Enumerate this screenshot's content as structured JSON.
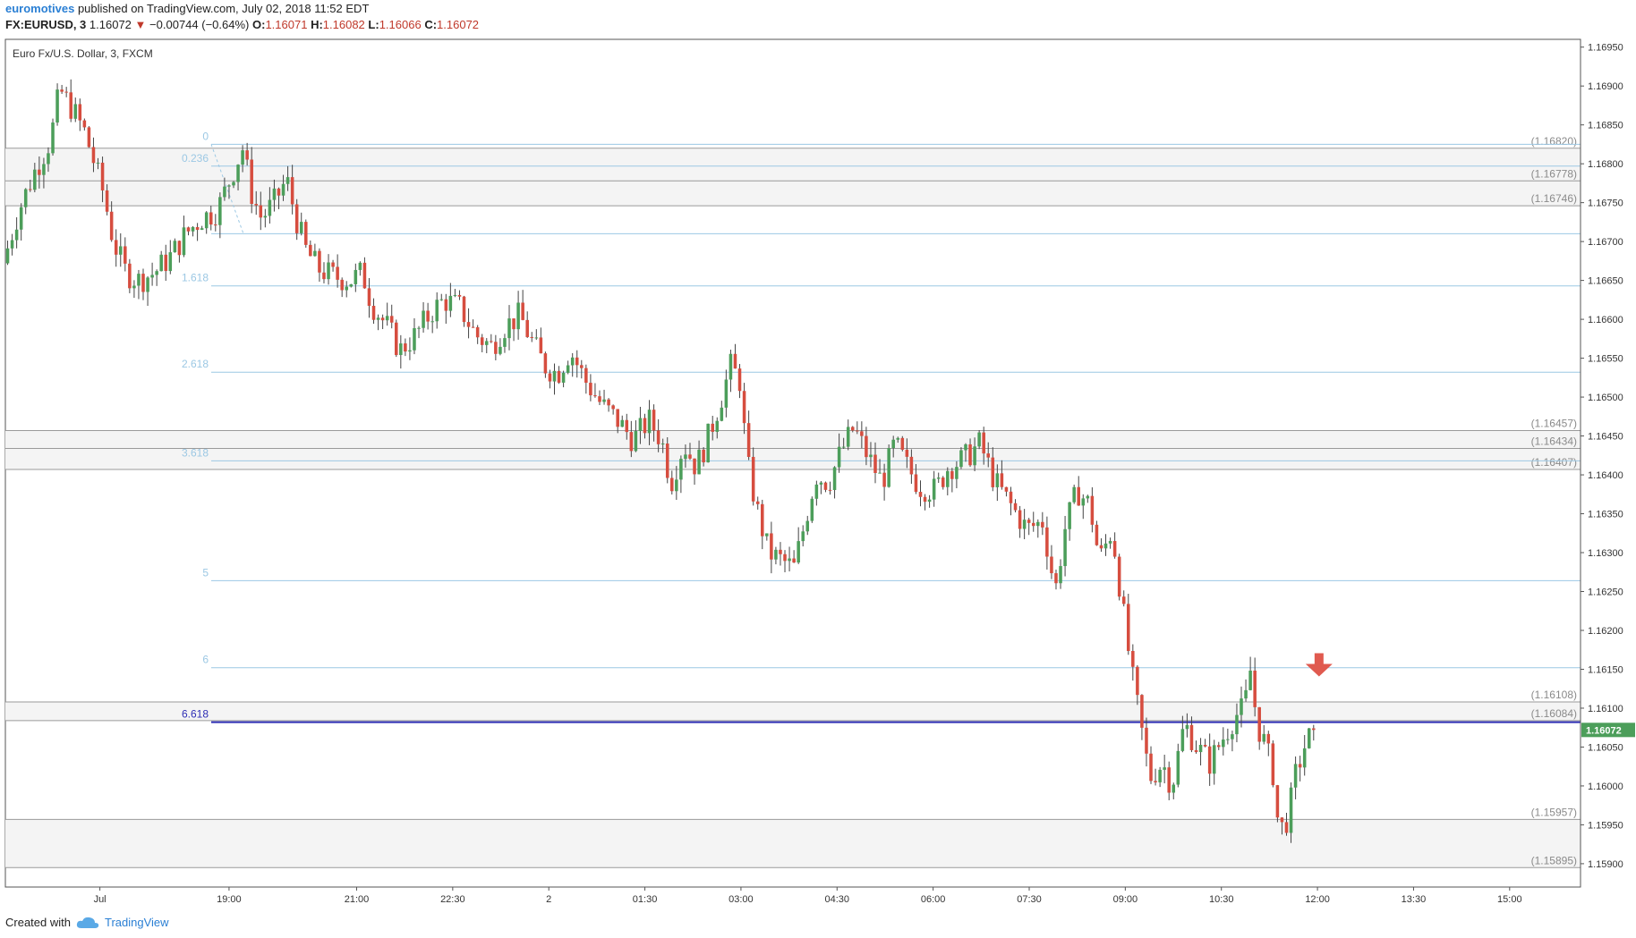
{
  "header": {
    "author": "euromotives",
    "published": "published on TradingView.com, July 02, 2018 11:52 EDT",
    "symbol": "FX:EURUSD, 3",
    "last": "1.16072",
    "change": "−0.00744 (−0.64%)",
    "o_label": "O:",
    "o": "1.16071",
    "h_label": "H:",
    "h": "1.16082",
    "l_label": "L:",
    "l": "1.16066",
    "c_label": "C:",
    "c": "1.16072"
  },
  "footer": {
    "created_with": "Created with",
    "brand": "TradingView"
  },
  "colors": {
    "up": "#4c9e5a",
    "down": "#d64d3f",
    "fib": "#9cc8e4",
    "hline": "#9a9a9a",
    "zone": "#f4f4f4",
    "blue": "#2f2fb5",
    "price_tag": "#4c9e5a",
    "arrow": "#e05a4f"
  },
  "chart_data": {
    "type": "candlestick",
    "title": "Euro Fx/U.S. Dollar, 3, FXCM",
    "ylim": [
      1.1587,
      1.1696
    ],
    "y_ticks": [
      "1.16950",
      "1.16900",
      "1.16850",
      "1.16800",
      "1.16750",
      "1.16700",
      "1.16650",
      "1.16600",
      "1.16550",
      "1.16500",
      "1.16450",
      "1.16400",
      "1.16350",
      "1.16300",
      "1.16250",
      "1.16200",
      "1.16150",
      "1.16100",
      "1.16050",
      "1.16000",
      "1.15950",
      "1.15900"
    ],
    "x_ticks": [
      {
        "label": "Jul",
        "t": 0.06
      },
      {
        "label": "19:00",
        "t": 0.142
      },
      {
        "label": "21:00",
        "t": 0.223
      },
      {
        "label": "22:30",
        "t": 0.284
      },
      {
        "label": "2",
        "t": 0.345
      },
      {
        "label": "01:30",
        "t": 0.406
      },
      {
        "label": "03:00",
        "t": 0.467
      },
      {
        "label": "04:30",
        "t": 0.528
      },
      {
        "label": "06:00",
        "t": 0.589
      },
      {
        "label": "07:30",
        "t": 0.65
      },
      {
        "label": "09:00",
        "t": 0.711
      },
      {
        "label": "10:30",
        "t": 0.772
      },
      {
        "label": "12:00",
        "t": 0.833
      },
      {
        "label": "13:30",
        "t": 0.894
      },
      {
        "label": "15:00",
        "t": 0.955
      }
    ],
    "price_path": [
      [
        0.0,
        1.16672
      ],
      [
        0.01,
        1.1674
      ],
      [
        0.02,
        1.1679
      ],
      [
        0.03,
        1.1683
      ],
      [
        0.036,
        1.16895
      ],
      [
        0.044,
        1.1687
      ],
      [
        0.052,
        1.1684
      ],
      [
        0.058,
        1.168
      ],
      [
        0.064,
        1.1676
      ],
      [
        0.07,
        1.167
      ],
      [
        0.078,
        1.1666
      ],
      [
        0.086,
        1.1665
      ],
      [
        0.096,
        1.1666
      ],
      [
        0.106,
        1.1668
      ],
      [
        0.116,
        1.1671
      ],
      [
        0.126,
        1.1673
      ],
      [
        0.136,
        1.1674
      ],
      [
        0.146,
        1.1679
      ],
      [
        0.152,
        1.1682
      ],
      [
        0.158,
        1.1676
      ],
      [
        0.164,
        1.1673
      ],
      [
        0.172,
        1.1675
      ],
      [
        0.18,
        1.1678
      ],
      [
        0.186,
        1.1673
      ],
      [
        0.192,
        1.1669
      ],
      [
        0.2,
        1.16665
      ],
      [
        0.21,
        1.16655
      ],
      [
        0.22,
        1.1665
      ],
      [
        0.228,
        1.1666
      ],
      [
        0.234,
        1.1662
      ],
      [
        0.244,
        1.1659
      ],
      [
        0.252,
        1.1656
      ],
      [
        0.262,
        1.1658
      ],
      [
        0.272,
        1.1661
      ],
      [
        0.28,
        1.16625
      ],
      [
        0.29,
        1.16615
      ],
      [
        0.3,
        1.1658
      ],
      [
        0.31,
        1.16565
      ],
      [
        0.318,
        1.1659
      ],
      [
        0.328,
        1.16605
      ],
      [
        0.336,
        1.1657
      ],
      [
        0.344,
        1.1654
      ],
      [
        0.352,
        1.1653
      ],
      [
        0.36,
        1.1656
      ],
      [
        0.37,
        1.1652
      ],
      [
        0.38,
        1.1649
      ],
      [
        0.39,
        1.1647
      ],
      [
        0.4,
        1.16445
      ],
      [
        0.41,
        1.1647
      ],
      [
        0.418,
        1.16445
      ],
      [
        0.424,
        1.1639
      ],
      [
        0.432,
        1.1644
      ],
      [
        0.44,
        1.1641
      ],
      [
        0.448,
        1.1645
      ],
      [
        0.456,
        1.165
      ],
      [
        0.462,
        1.1654
      ],
      [
        0.468,
        1.1652
      ],
      [
        0.472,
        1.1642
      ],
      [
        0.478,
        1.1636
      ],
      [
        0.486,
        1.163
      ],
      [
        0.494,
        1.1629
      ],
      [
        0.502,
        1.1628
      ],
      [
        0.508,
        1.1633
      ],
      [
        0.516,
        1.164
      ],
      [
        0.524,
        1.1639
      ],
      [
        0.532,
        1.1643
      ],
      [
        0.54,
        1.1646
      ],
      [
        0.55,
        1.1642
      ],
      [
        0.558,
        1.1639
      ],
      [
        0.566,
        1.1644
      ],
      [
        0.574,
        1.1641
      ],
      [
        0.582,
        1.16385
      ],
      [
        0.592,
        1.1638
      ],
      [
        0.6,
        1.1641
      ],
      [
        0.61,
        1.1642
      ],
      [
        0.62,
        1.1644
      ],
      [
        0.63,
        1.1639
      ],
      [
        0.64,
        1.1636
      ],
      [
        0.65,
        1.1633
      ],
      [
        0.66,
        1.1634
      ],
      [
        0.668,
        1.1625
      ],
      [
        0.674,
        1.1633
      ],
      [
        0.682,
        1.1638
      ],
      [
        0.69,
        1.1636
      ],
      [
        0.696,
        1.1629
      ],
      [
        0.704,
        1.1633
      ],
      [
        0.71,
        1.1624
      ],
      [
        0.716,
        1.1615
      ],
      [
        0.722,
        1.1608
      ],
      [
        0.728,
        1.1601
      ],
      [
        0.736,
        1.1603
      ],
      [
        0.742,
        1.16
      ],
      [
        0.75,
        1.1608
      ],
      [
        0.758,
        1.1605
      ],
      [
        0.766,
        1.1603
      ],
      [
        0.774,
        1.1606
      ],
      [
        0.782,
        1.1609
      ],
      [
        0.788,
        1.161
      ],
      [
        0.792,
        1.1615
      ],
      [
        0.796,
        1.1608
      ],
      [
        0.8,
        1.1606
      ],
      [
        0.806,
        1.1602
      ],
      [
        0.81,
        1.1594
      ],
      [
        0.816,
        1.1596
      ],
      [
        0.82,
        1.1601
      ],
      [
        0.826,
        1.1605
      ],
      [
        0.832,
        1.16072
      ]
    ],
    "fib_levels": [
      {
        "label": "0",
        "price": 1.16825
      },
      {
        "label": "0.236",
        "price": 1.16797
      },
      {
        "label": "1.618",
        "price": 1.16643
      },
      {
        "label": "2.618",
        "price": 1.16532
      },
      {
        "label": "3.618",
        "price": 1.16418
      },
      {
        "label": "5",
        "price": 1.16264
      },
      {
        "label": "6",
        "price": 1.16152
      }
    ],
    "fib_blue": {
      "label": "6.618",
      "price": 1.16082
    },
    "h_levels": [
      {
        "label": "(1.16820)",
        "price": 1.1682
      },
      {
        "label": "(1.16778)",
        "price": 1.16778
      },
      {
        "label": "(1.16746)",
        "price": 1.16746
      },
      {
        "label": "(1.16457)",
        "price": 1.16457
      },
      {
        "label": "(1.16434)",
        "price": 1.16434
      },
      {
        "label": "(1.16407)",
        "price": 1.16407
      },
      {
        "label": "(1.16108)",
        "price": 1.16108
      },
      {
        "label": "(1.16084)",
        "price": 1.16084
      },
      {
        "label": "(1.15957)",
        "price": 1.15957
      },
      {
        "label": "(1.15895)",
        "price": 1.15895
      }
    ],
    "zones": [
      [
        1.16746,
        1.1682
      ],
      [
        1.16407,
        1.16457
      ],
      [
        1.16084,
        1.16108
      ],
      [
        1.15895,
        1.15957
      ]
    ],
    "extra_fib_line": 1.1671,
    "last_price_tag": "1.16072",
    "signal": {
      "kind": "down-arrow",
      "t": 0.834,
      "price": 1.1615
    }
  }
}
